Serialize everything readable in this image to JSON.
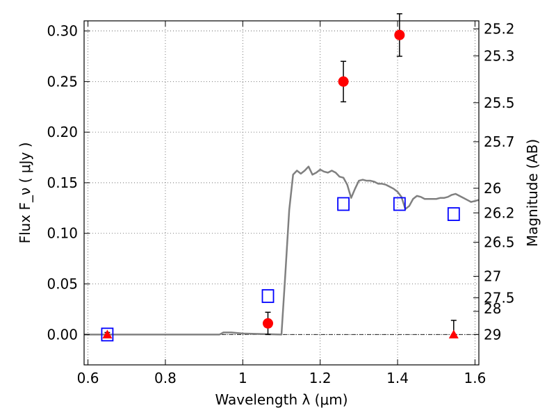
{
  "chart_data": {
    "type": "scatter",
    "xlabel": "Wavelength  λ (μm)",
    "ylabel": "Flux  F_ν  ( μJy )",
    "y2label": "Magnitude (AB)",
    "xlim": [
      0.59,
      1.61
    ],
    "ylim": [
      -0.03,
      0.31
    ],
    "grid": true,
    "xticks": [
      0.6,
      0.8,
      1.0,
      1.2,
      1.4,
      1.6
    ],
    "xtick_labels": [
      "0.6",
      "0.8",
      "1",
      "1.2",
      "1.4",
      "1.6"
    ],
    "yticks": [
      0.0,
      0.05,
      0.1,
      0.15,
      0.2,
      0.25,
      0.3
    ],
    "ytick_labels": [
      "0.00",
      "0.05",
      "0.10",
      "0.15",
      "0.20",
      "0.25",
      "0.30"
    ],
    "magnitude_ticks": [
      {
        "label": "25.2",
        "mag": 25.2
      },
      {
        "label": "25.3",
        "mag": 25.3
      },
      {
        "label": "25.5",
        "mag": 25.5
      },
      {
        "label": "25.7",
        "mag": 25.7
      },
      {
        "label": "26",
        "mag": 26.0
      },
      {
        "label": "26.2",
        "mag": 26.2
      },
      {
        "label": "26.5",
        "mag": 26.5
      },
      {
        "label": "27",
        "mag": 27.0
      },
      {
        "label": "27.5",
        "mag": 27.5
      },
      {
        "label": "28",
        "mag": 28.0
      },
      {
        "label": "29",
        "mag": 29.0
      }
    ],
    "series": [
      {
        "kind": "model_sed_line",
        "color": "#808080",
        "x": [
          0.59,
          0.94,
          0.95,
          0.97,
          1.0,
          1.05,
          1.1,
          1.11,
          1.12,
          1.13,
          1.14,
          1.15,
          1.16,
          1.17,
          1.18,
          1.19,
          1.2,
          1.21,
          1.22,
          1.23,
          1.24,
          1.25,
          1.26,
          1.27,
          1.28,
          1.29,
          1.3,
          1.31,
          1.32,
          1.33,
          1.34,
          1.35,
          1.36,
          1.37,
          1.38,
          1.39,
          1.4,
          1.41,
          1.42,
          1.43,
          1.44,
          1.45,
          1.46,
          1.47,
          1.48,
          1.49,
          1.5,
          1.51,
          1.52,
          1.53,
          1.54,
          1.55,
          1.56,
          1.57,
          1.58,
          1.59,
          1.6,
          1.61
        ],
        "y": [
          0.0,
          0.0,
          0.002,
          0.002,
          0.001,
          0.0005,
          0.0,
          0.06,
          0.123,
          0.158,
          0.162,
          0.159,
          0.162,
          0.166,
          0.158,
          0.16,
          0.163,
          0.161,
          0.16,
          0.162,
          0.16,
          0.156,
          0.155,
          0.148,
          0.135,
          0.144,
          0.152,
          0.153,
          0.152,
          0.152,
          0.151,
          0.149,
          0.149,
          0.148,
          0.146,
          0.144,
          0.141,
          0.136,
          0.124,
          0.127,
          0.134,
          0.137,
          0.136,
          0.134,
          0.134,
          0.134,
          0.134,
          0.135,
          0.135,
          0.136,
          0.138,
          0.139,
          0.137,
          0.135,
          0.133,
          0.131,
          0.132,
          0.133
        ]
      },
      {
        "kind": "model_photometry",
        "marker": "open-square",
        "color": "#0000ff",
        "x": [
          0.65,
          1.065,
          1.26,
          1.405,
          1.545
        ],
        "y": [
          0.0,
          0.038,
          0.129,
          0.129,
          0.119
        ]
      },
      {
        "kind": "observed_detections",
        "marker": "filled-circle",
        "color": "#ff0000",
        "x": [
          1.065,
          1.26,
          1.405
        ],
        "y": [
          0.011,
          0.25,
          0.296
        ],
        "err": [
          0.011,
          0.02,
          0.021
        ]
      },
      {
        "kind": "observed_upper_limits",
        "marker": "filled-triangle",
        "color": "#ff0000",
        "x": [
          0.65,
          1.545
        ],
        "y": [
          0.0,
          0.0
        ],
        "err_up": [
          0.002,
          0.014
        ],
        "err_down": [
          0.002,
          0.0
        ]
      }
    ]
  }
}
